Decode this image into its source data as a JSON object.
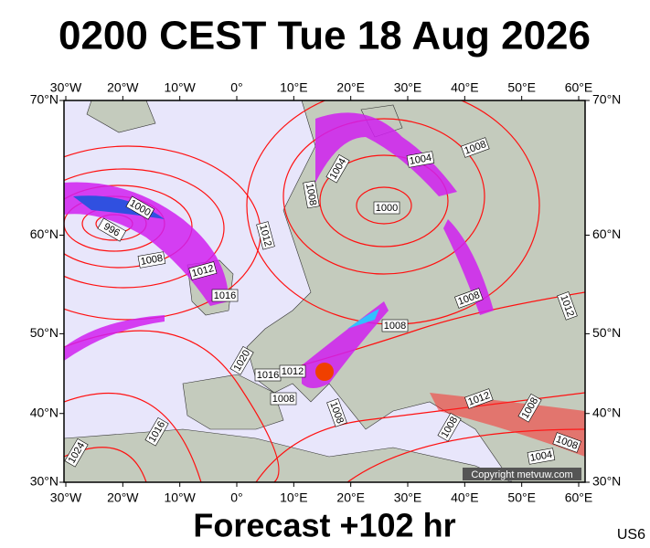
{
  "header": {
    "title": "0200 CEST Tue 18 Aug 2026"
  },
  "map": {
    "lon_ticks": [
      {
        "value": -30,
        "label": "30°W"
      },
      {
        "value": -20,
        "label": "20°W"
      },
      {
        "value": -10,
        "label": "10°W"
      },
      {
        "value": 0,
        "label": "0°"
      },
      {
        "value": 10,
        "label": "10°E"
      },
      {
        "value": 20,
        "label": "20°E"
      },
      {
        "value": 30,
        "label": "30°E"
      },
      {
        "value": 40,
        "label": "40°E"
      },
      {
        "value": 50,
        "label": "50°E"
      },
      {
        "value": 60,
        "label": "60°E"
      }
    ],
    "lat_ticks": [
      {
        "value": 30,
        "label": "30°N"
      },
      {
        "value": 40,
        "label": "40°N"
      },
      {
        "value": 50,
        "label": "50°N"
      },
      {
        "value": 60,
        "label": "60°N"
      },
      {
        "value": 70,
        "label": "70°N"
      }
    ],
    "isobar_labels": [
      1000,
      996,
      1008,
      1012,
      1016,
      1012,
      1008,
      1004,
      1000,
      1004,
      1008,
      1008,
      1012,
      1008,
      1020,
      1016,
      1012,
      1008,
      1008,
      1012,
      1008,
      1008,
      1008,
      1004,
      1016,
      1024
    ],
    "copyright": "Copyright metvuw.com"
  },
  "footer": {
    "forecast": "Forecast +102 hr",
    "code": "US6"
  }
}
